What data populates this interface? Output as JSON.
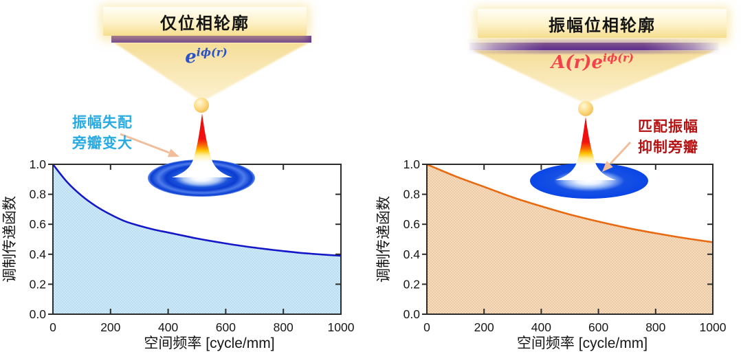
{
  "figure": {
    "background": "#ffffff",
    "arrow_color": "#f2bd9b"
  },
  "left_panel": {
    "title": "仅位相轮廓",
    "bar_style": "uniform-solid-purple",
    "bar_color": "#5b2b8f",
    "formula": {
      "prefix": "",
      "base": "e",
      "sup": "iϕ(r)",
      "color": "#2b52c8"
    },
    "callout": {
      "line1": "振幅失配",
      "line2": "旁瓣变大",
      "color": "#29abe2"
    },
    "psf_style": "strong-ringed-sidelobes"
  },
  "right_panel": {
    "title": "振幅位相轮廓",
    "bar_style": "apodized-gradient-purple",
    "bar_color": "#5b2b8f",
    "formula": {
      "prefix": "A(r)",
      "base": "e",
      "sup": "iϕ(r)",
      "color": "#f2434d"
    },
    "callout": {
      "line1": "匹配振幅",
      "line2": "抑制旁瓣",
      "color": "#b51313"
    },
    "psf_style": "smooth-suppressed-sidelobes"
  },
  "chart_data": [
    {
      "type": "area",
      "panel": "left",
      "title": "",
      "xlabel": "空间频率  [cycle/mm]",
      "ylabel": "调制传递函数",
      "xlim": [
        0,
        1000
      ],
      "ylim": [
        0,
        1
      ],
      "xticks": [
        0,
        200,
        400,
        600,
        800,
        1000
      ],
      "yticks": [
        0,
        0.2,
        0.4,
        0.6,
        0.8,
        1.0
      ],
      "grid": false,
      "legend": null,
      "x": [
        0,
        50,
        100,
        150,
        200,
        250,
        300,
        350,
        400,
        450,
        500,
        550,
        600,
        650,
        700,
        750,
        800,
        850,
        900,
        950,
        1000
      ],
      "values": [
        1.0,
        0.88,
        0.79,
        0.72,
        0.665,
        0.62,
        0.59,
        0.565,
        0.545,
        0.525,
        0.505,
        0.488,
        0.472,
        0.457,
        0.444,
        0.432,
        0.421,
        0.411,
        0.403,
        0.396,
        0.39
      ],
      "line_color": "#1518c8",
      "fill_color": "#cde9f8",
      "dot_color": "#aad2ec"
    },
    {
      "type": "area",
      "panel": "right",
      "title": "",
      "xlabel": "空间频率  [cycle/mm]",
      "ylabel": "调制传递函数",
      "xlim": [
        0,
        1000
      ],
      "ylim": [
        0,
        1
      ],
      "xticks": [
        0,
        200,
        400,
        600,
        800,
        1000
      ],
      "yticks": [
        0,
        0.2,
        0.4,
        0.6,
        0.8,
        1.0
      ],
      "grid": false,
      "legend": null,
      "x": [
        0,
        100,
        200,
        300,
        400,
        500,
        600,
        700,
        800,
        900,
        1000
      ],
      "values": [
        1.0,
        0.92,
        0.85,
        0.78,
        0.72,
        0.665,
        0.618,
        0.576,
        0.54,
        0.508,
        0.48
      ],
      "line_color": "#e8690f",
      "fill_color": "#f5dcbe",
      "dot_color": "#e3b587"
    }
  ]
}
